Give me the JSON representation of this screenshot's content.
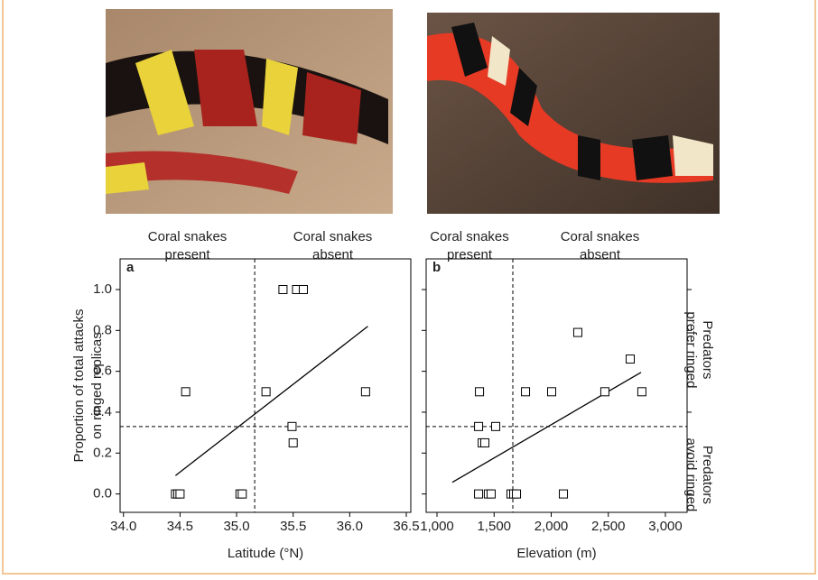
{
  "chart_data": [
    {
      "type": "scatter",
      "panel": "a",
      "xlabel": "Latitude (°N)",
      "ylabel": [
        "Proportion of total attacks",
        "on ringed replicas"
      ],
      "region_labels": [
        [
          "Coral snakes",
          "present"
        ],
        [
          "Coral snakes",
          "absent"
        ]
      ],
      "x": [
        34.46,
        34.48,
        34.5,
        34.55,
        35.03,
        35.05,
        35.26,
        35.41,
        35.53,
        35.59,
        35.49,
        35.5,
        36.14
      ],
      "y": [
        0,
        0,
        0,
        0.5,
        0,
        0,
        0.5,
        1,
        1,
        1,
        0.33,
        0.25,
        0.5
      ],
      "fit": {
        "x": [
          34.46,
          36.16
        ],
        "y": [
          0.09,
          0.82
        ]
      },
      "threshold": {
        "x": 35.16,
        "y": 0.33
      },
      "color": "#000000",
      "xlim": [
        33.97,
        36.54
      ],
      "ylim": [
        -0.09,
        1.15
      ],
      "xticks": [
        {
          "value": 34,
          "label": "34.0"
        },
        34.5,
        {
          "value": 35,
          "label": "35.0"
        },
        35.5,
        {
          "value": 36,
          "label": "36.0"
        },
        36.5
      ],
      "yticks": [
        {
          "value": 0,
          "label": "0.0"
        },
        0.2,
        0.4,
        0.6,
        0.8,
        {
          "value": 1,
          "label": "1.0"
        }
      ]
    },
    {
      "type": "scatter",
      "panel": "b",
      "xlabel": "Elevation (m)",
      "region_labels": [
        [
          "Coral snakes",
          "present"
        ],
        [
          "Coral snakes",
          "absent"
        ]
      ],
      "side_labels": [
        [
          "Predators",
          "prefer ringed"
        ],
        [
          "Predators",
          "avoid ringed"
        ]
      ],
      "x": [
        1364,
        1372,
        1396,
        1419,
        1364,
        1450,
        1474,
        1514,
        1648,
        1672,
        1696,
        1775,
        2004,
        2107,
        2233,
        2470,
        2692,
        2794
      ],
      "y": [
        0.33,
        0.5,
        0.25,
        0.25,
        0,
        0,
        0,
        0.33,
        0,
        0,
        0,
        0.5,
        0.5,
        0,
        0.79,
        0.5,
        0.66,
        0.5
      ],
      "fit": {
        "x": [
          1134,
          2787
        ],
        "y": [
          0.057,
          0.595
        ]
      },
      "threshold": {
        "x": 1664,
        "y": 0.33
      },
      "color": "#000000",
      "xlim": [
        905,
        3190
      ],
      "ylim": [
        -0.09,
        1.15
      ],
      "xticks": [
        {
          "value": 1000,
          "label": "1,000"
        },
        {
          "value": 1500,
          "label": "1,500"
        },
        {
          "value": 2000,
          "label": "2,000"
        },
        {
          "value": 2500,
          "label": "2,500"
        },
        {
          "value": 3000,
          "label": "3,000"
        }
      ],
      "yticks": [
        0,
        0.2,
        0.4,
        0.6,
        0.8,
        1
      ]
    }
  ]
}
